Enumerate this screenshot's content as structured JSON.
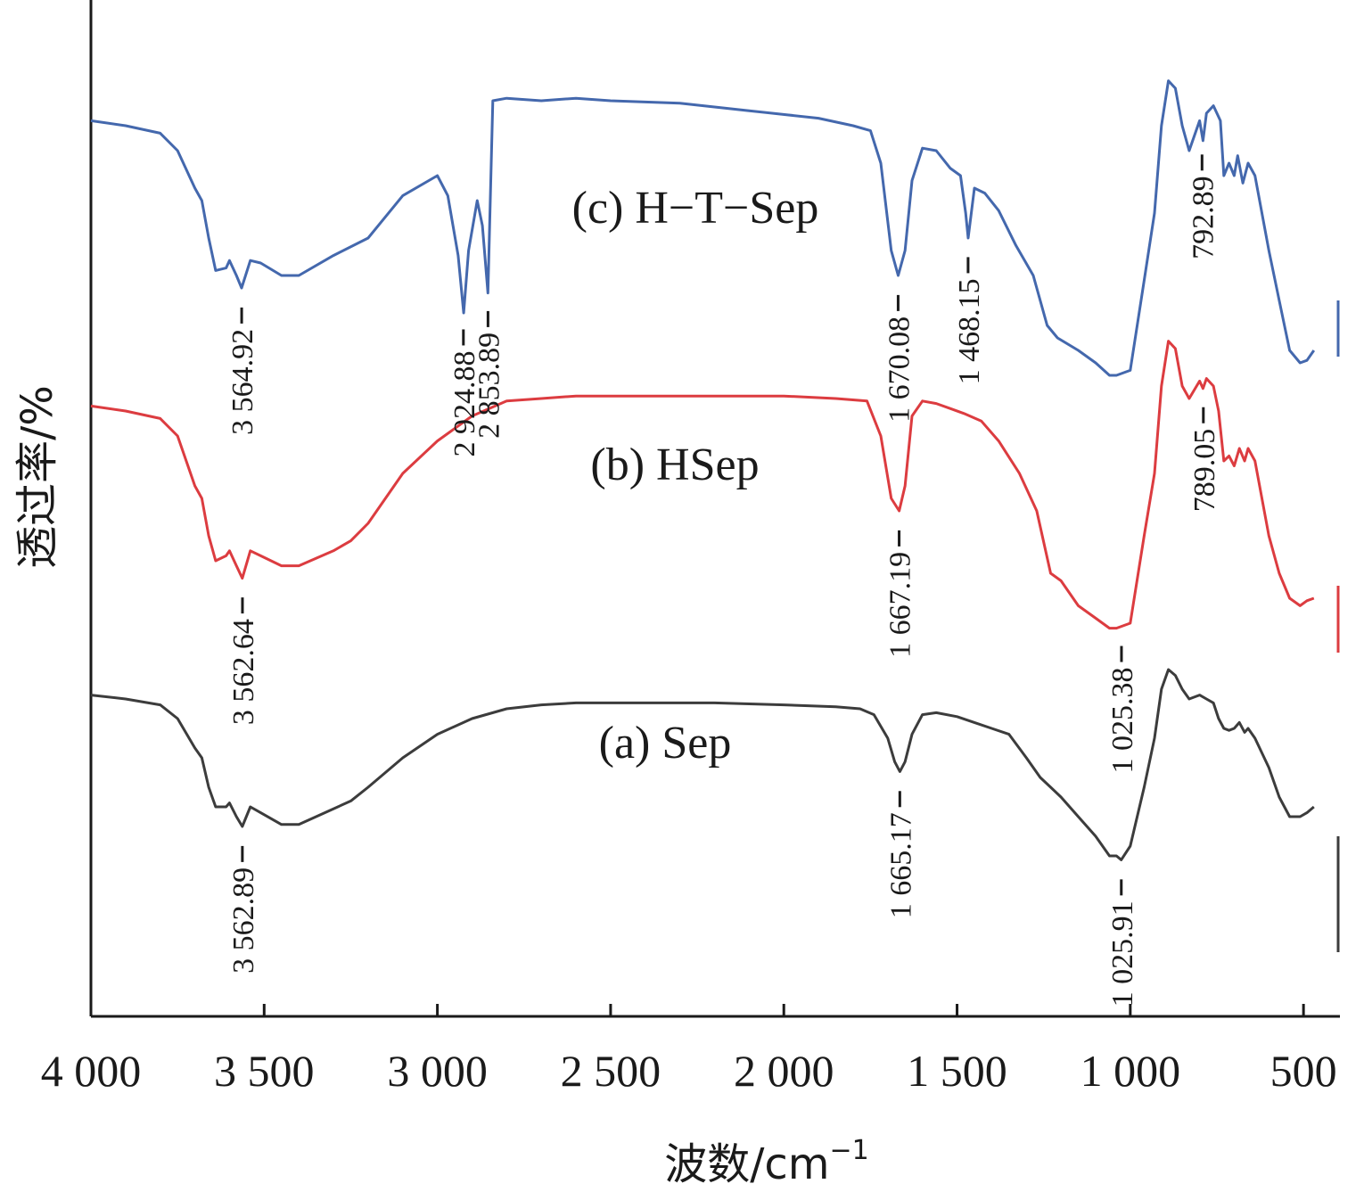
{
  "chart_data": {
    "type": "line",
    "xlabel": "波数/cm",
    "xlabel_sup": "−1",
    "ylabel": "透过率/%",
    "x_reversed": true,
    "xlim": [
      4000,
      400
    ],
    "x_ticks": [
      4000,
      3500,
      3000,
      2500,
      2000,
      1500,
      1000,
      500
    ],
    "x_tick_labels": [
      "4 000",
      "3 500",
      "3 000",
      "2 500",
      "2 000",
      "1 500",
      "1 000",
      "500"
    ],
    "y_ticks_shown": false,
    "grid": false,
    "series": [
      {
        "name": "(c) H−T−Sep",
        "color": "#4468ad",
        "offset": 2,
        "points": [
          [
            4000,
            0.72
          ],
          [
            3900,
            0.7
          ],
          [
            3800,
            0.67
          ],
          [
            3750,
            0.6
          ],
          [
            3700,
            0.45
          ],
          [
            3680,
            0.4
          ],
          [
            3660,
            0.25
          ],
          [
            3640,
            0.12
          ],
          [
            3610,
            0.13
          ],
          [
            3600,
            0.16
          ],
          [
            3580,
            0.1
          ],
          [
            3565,
            0.05
          ],
          [
            3540,
            0.16
          ],
          [
            3510,
            0.15
          ],
          [
            3450,
            0.1
          ],
          [
            3400,
            0.1
          ],
          [
            3300,
            0.18
          ],
          [
            3200,
            0.25
          ],
          [
            3100,
            0.42
          ],
          [
            3000,
            0.5
          ],
          [
            2970,
            0.42
          ],
          [
            2940,
            0.18
          ],
          [
            2924,
            -0.05
          ],
          [
            2910,
            0.2
          ],
          [
            2885,
            0.4
          ],
          [
            2870,
            0.3
          ],
          [
            2854,
            0.03
          ],
          [
            2840,
            0.8
          ],
          [
            2800,
            0.81
          ],
          [
            2700,
            0.8
          ],
          [
            2600,
            0.81
          ],
          [
            2500,
            0.8
          ],
          [
            2300,
            0.79
          ],
          [
            2100,
            0.76
          ],
          [
            1900,
            0.73
          ],
          [
            1800,
            0.7
          ],
          [
            1750,
            0.68
          ],
          [
            1720,
            0.55
          ],
          [
            1690,
            0.2
          ],
          [
            1670,
            0.1
          ],
          [
            1650,
            0.2
          ],
          [
            1630,
            0.48
          ],
          [
            1600,
            0.61
          ],
          [
            1560,
            0.6
          ],
          [
            1520,
            0.53
          ],
          [
            1490,
            0.5
          ],
          [
            1475,
            0.35
          ],
          [
            1468,
            0.25
          ],
          [
            1450,
            0.45
          ],
          [
            1420,
            0.43
          ],
          [
            1380,
            0.36
          ],
          [
            1330,
            0.22
          ],
          [
            1280,
            0.1
          ],
          [
            1240,
            -0.1
          ],
          [
            1210,
            -0.15
          ],
          [
            1150,
            -0.2
          ],
          [
            1100,
            -0.25
          ],
          [
            1060,
            -0.3
          ],
          [
            1040,
            -0.3
          ],
          [
            1000,
            -0.28
          ],
          [
            960,
            0.08
          ],
          [
            930,
            0.35
          ],
          [
            910,
            0.7
          ],
          [
            890,
            0.88
          ],
          [
            870,
            0.85
          ],
          [
            850,
            0.7
          ],
          [
            830,
            0.6
          ],
          [
            800,
            0.72
          ],
          [
            790,
            0.64
          ],
          [
            780,
            0.75
          ],
          [
            760,
            0.78
          ],
          [
            740,
            0.72
          ],
          [
            730,
            0.5
          ],
          [
            715,
            0.55
          ],
          [
            700,
            0.5
          ],
          [
            690,
            0.58
          ],
          [
            675,
            0.47
          ],
          [
            660,
            0.55
          ],
          [
            640,
            0.5
          ],
          [
            600,
            0.2
          ],
          [
            570,
            0.0
          ],
          [
            540,
            -0.2
          ],
          [
            510,
            -0.25
          ],
          [
            490,
            -0.24
          ],
          [
            470,
            -0.2
          ]
        ]
      },
      {
        "name": "(b) HSep",
        "color": "#dc3c40",
        "offset": 1,
        "points": [
          [
            4000,
            0.72
          ],
          [
            3900,
            0.7
          ],
          [
            3800,
            0.67
          ],
          [
            3750,
            0.6
          ],
          [
            3700,
            0.4
          ],
          [
            3680,
            0.35
          ],
          [
            3660,
            0.2
          ],
          [
            3640,
            0.1
          ],
          [
            3610,
            0.12
          ],
          [
            3600,
            0.14
          ],
          [
            3580,
            0.08
          ],
          [
            3563,
            0.03
          ],
          [
            3540,
            0.14
          ],
          [
            3510,
            0.12
          ],
          [
            3450,
            0.08
          ],
          [
            3400,
            0.08
          ],
          [
            3300,
            0.14
          ],
          [
            3250,
            0.18
          ],
          [
            3200,
            0.25
          ],
          [
            3100,
            0.45
          ],
          [
            3000,
            0.58
          ],
          [
            2900,
            0.68
          ],
          [
            2800,
            0.74
          ],
          [
            2700,
            0.75
          ],
          [
            2600,
            0.76
          ],
          [
            2400,
            0.76
          ],
          [
            2200,
            0.76
          ],
          [
            2000,
            0.76
          ],
          [
            1850,
            0.75
          ],
          [
            1760,
            0.74
          ],
          [
            1720,
            0.6
          ],
          [
            1690,
            0.35
          ],
          [
            1667,
            0.3
          ],
          [
            1650,
            0.4
          ],
          [
            1630,
            0.68
          ],
          [
            1600,
            0.74
          ],
          [
            1560,
            0.73
          ],
          [
            1520,
            0.71
          ],
          [
            1480,
            0.69
          ],
          [
            1430,
            0.66
          ],
          [
            1380,
            0.58
          ],
          [
            1320,
            0.45
          ],
          [
            1270,
            0.3
          ],
          [
            1230,
            0.05
          ],
          [
            1200,
            0.02
          ],
          [
            1150,
            -0.08
          ],
          [
            1100,
            -0.13
          ],
          [
            1060,
            -0.17
          ],
          [
            1040,
            -0.17
          ],
          [
            1000,
            -0.15
          ],
          [
            960,
            0.2
          ],
          [
            930,
            0.45
          ],
          [
            910,
            0.8
          ],
          [
            890,
            0.98
          ],
          [
            870,
            0.95
          ],
          [
            850,
            0.8
          ],
          [
            830,
            0.75
          ],
          [
            800,
            0.82
          ],
          [
            790,
            0.79
          ],
          [
            780,
            0.83
          ],
          [
            760,
            0.8
          ],
          [
            745,
            0.7
          ],
          [
            730,
            0.5
          ],
          [
            715,
            0.52
          ],
          [
            700,
            0.48
          ],
          [
            685,
            0.55
          ],
          [
            670,
            0.5
          ],
          [
            660,
            0.55
          ],
          [
            640,
            0.5
          ],
          [
            600,
            0.2
          ],
          [
            570,
            0.05
          ],
          [
            540,
            -0.05
          ],
          [
            510,
            -0.08
          ],
          [
            490,
            -0.06
          ],
          [
            470,
            -0.05
          ]
        ]
      },
      {
        "name": "(a) Sep",
        "color": "#3c3c3c",
        "offset": 0,
        "points": [
          [
            4000,
            0.72
          ],
          [
            3900,
            0.7
          ],
          [
            3800,
            0.67
          ],
          [
            3750,
            0.6
          ],
          [
            3700,
            0.45
          ],
          [
            3680,
            0.4
          ],
          [
            3660,
            0.25
          ],
          [
            3640,
            0.15
          ],
          [
            3610,
            0.15
          ],
          [
            3600,
            0.17
          ],
          [
            3580,
            0.1
          ],
          [
            3563,
            0.05
          ],
          [
            3540,
            0.15
          ],
          [
            3510,
            0.12
          ],
          [
            3450,
            0.06
          ],
          [
            3400,
            0.06
          ],
          [
            3300,
            0.14
          ],
          [
            3250,
            0.18
          ],
          [
            3200,
            0.25
          ],
          [
            3100,
            0.4
          ],
          [
            3000,
            0.52
          ],
          [
            2900,
            0.6
          ],
          [
            2800,
            0.65
          ],
          [
            2700,
            0.67
          ],
          [
            2600,
            0.68
          ],
          [
            2400,
            0.68
          ],
          [
            2200,
            0.68
          ],
          [
            2000,
            0.67
          ],
          [
            1850,
            0.66
          ],
          [
            1780,
            0.65
          ],
          [
            1740,
            0.62
          ],
          [
            1700,
            0.5
          ],
          [
            1680,
            0.38
          ],
          [
            1665,
            0.33
          ],
          [
            1650,
            0.38
          ],
          [
            1630,
            0.52
          ],
          [
            1600,
            0.62
          ],
          [
            1560,
            0.63
          ],
          [
            1500,
            0.61
          ],
          [
            1450,
            0.58
          ],
          [
            1400,
            0.55
          ],
          [
            1350,
            0.52
          ],
          [
            1300,
            0.4
          ],
          [
            1260,
            0.3
          ],
          [
            1230,
            0.25
          ],
          [
            1200,
            0.2
          ],
          [
            1150,
            0.1
          ],
          [
            1100,
            0.0
          ],
          [
            1060,
            -0.1
          ],
          [
            1040,
            -0.1
          ],
          [
            1026,
            -0.12
          ],
          [
            1000,
            -0.05
          ],
          [
            960,
            0.25
          ],
          [
            930,
            0.5
          ],
          [
            910,
            0.75
          ],
          [
            890,
            0.85
          ],
          [
            870,
            0.82
          ],
          [
            850,
            0.75
          ],
          [
            830,
            0.7
          ],
          [
            800,
            0.72
          ],
          [
            780,
            0.7
          ],
          [
            760,
            0.68
          ],
          [
            745,
            0.6
          ],
          [
            730,
            0.55
          ],
          [
            715,
            0.54
          ],
          [
            700,
            0.55
          ],
          [
            685,
            0.58
          ],
          [
            670,
            0.53
          ],
          [
            660,
            0.55
          ],
          [
            640,
            0.5
          ],
          [
            600,
            0.35
          ],
          [
            570,
            0.2
          ],
          [
            540,
            0.1
          ],
          [
            510,
            0.1
          ],
          [
            490,
            0.12
          ],
          [
            470,
            0.15
          ]
        ]
      }
    ],
    "peak_labels": [
      {
        "series": 0,
        "x": 3564.92,
        "text": "3 564.92"
      },
      {
        "series": 0,
        "x": 2924.88,
        "text": "2 924.88"
      },
      {
        "series": 0,
        "x": 2853.89,
        "text": "2 853.89"
      },
      {
        "series": 0,
        "x": 1670.08,
        "text": "1 670.08"
      },
      {
        "series": 0,
        "x": 1468.15,
        "text": "1 468.15"
      },
      {
        "series": 0,
        "x": 792.89,
        "text": "792.89"
      },
      {
        "series": 1,
        "x": 3562.64,
        "text": "3 562.64"
      },
      {
        "series": 1,
        "x": 1667.19,
        "text": "1 667.19"
      },
      {
        "series": 1,
        "x": 1025.38,
        "text": "1 025.38"
      },
      {
        "series": 1,
        "x": 789.05,
        "text": "789.05"
      },
      {
        "series": 2,
        "x": 3562.89,
        "text": "3 562.89"
      },
      {
        "series": 2,
        "x": 1665.17,
        "text": "1 665.17"
      },
      {
        "series": 2,
        "x": 1025.91,
        "text": "1 025.91"
      }
    ]
  }
}
